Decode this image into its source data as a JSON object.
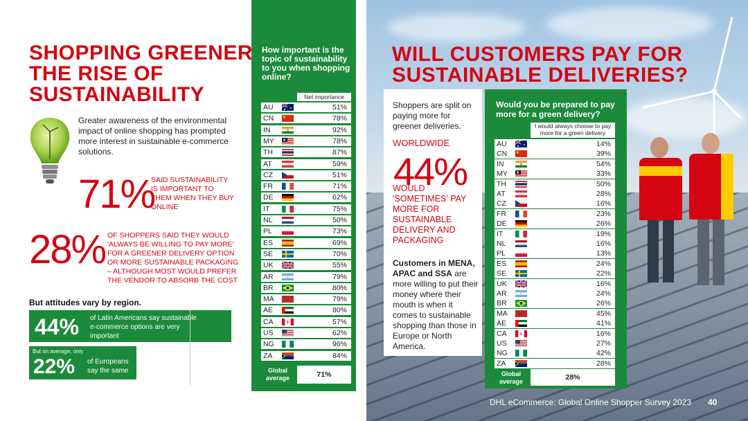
{
  "left": {
    "title_lines": [
      "SHOPPING GREENER:",
      "THE RISE OF",
      "SUSTAINABILITY"
    ],
    "intro": "Greater awareness of the environmental impact of online shopping has prompted more interest in sustainable e-commerce solutions.",
    "stat1_value": "71%",
    "stat1_text": "SAID SUSTAINABILITY IS IMPORTANT TO THEM WHEN THEY BUY ONLINE",
    "stat2_value": "28%",
    "stat2_text": "OF SHOPPERS SAID THEY WOULD 'ALWAYS BE WILLING TO PAY MORE' FOR A GREENER DELIVERY OPTION OR MORE SUSTAINABLE PACKAGING – ALTHOUGH MOST WOULD PREFER THE VENDOR TO ABSORB THE COST",
    "attitudes": "But attitudes vary by region.",
    "box1_value": "44%",
    "box1_text": "of Latin Americans say sustainable e-commerce options are very important",
    "box2_prefix": "But on average, only",
    "box2_value": "22%",
    "box2_text": "of Europeans say the same"
  },
  "table1": {
    "question": "How important is the topic of sustainability to you when shopping online?",
    "column": "Net importance",
    "rows": [
      {
        "cc": "AU",
        "v": "51%"
      },
      {
        "cc": "CN",
        "v": "78%"
      },
      {
        "cc": "IN",
        "v": "92%"
      },
      {
        "cc": "MY",
        "v": "78%"
      },
      {
        "cc": "TH",
        "v": "87%"
      },
      {
        "cc": "AT",
        "v": "59%"
      },
      {
        "cc": "CZ",
        "v": "51%"
      },
      {
        "cc": "FR",
        "v": "71%"
      },
      {
        "cc": "DE",
        "v": "62%"
      },
      {
        "cc": "IT",
        "v": "75%"
      },
      {
        "cc": "NL",
        "v": "50%"
      },
      {
        "cc": "PL",
        "v": "73%"
      },
      {
        "cc": "ES",
        "v": "69%"
      },
      {
        "cc": "SE",
        "v": "70%"
      },
      {
        "cc": "UK",
        "v": "55%"
      },
      {
        "cc": "AR",
        "v": "79%"
      },
      {
        "cc": "BR",
        "v": "80%"
      },
      {
        "cc": "MA",
        "v": "79%"
      },
      {
        "cc": "AE",
        "v": "80%"
      },
      {
        "cc": "CA",
        "v": "57%"
      },
      {
        "cc": "US",
        "v": "62%"
      },
      {
        "cc": "NG",
        "v": "96%"
      },
      {
        "cc": "ZA",
        "v": "84%"
      }
    ],
    "avg_label": "Global average",
    "avg_value": "71%"
  },
  "right": {
    "title_lines": [
      "WILL CUSTOMERS PAY FOR",
      "SUSTAINABLE DELIVERIES?"
    ],
    "card_p1": "Shoppers are split on paying more for greener deliveries.",
    "worldwide": "WORLDWIDE",
    "worldwide_value": "44%",
    "would_text": "WOULD 'SOMETIMES' PAY MORE FOR SUSTAINABLE DELIVERY AND PACKAGING",
    "card_p2_bold": "Customers in MENA, APAC and SSA",
    "card_p2": "are more willing to put their money where their mouth is when it comes to sustainable shopping than those in Europe or North America."
  },
  "table2": {
    "question": "Would you be prepared to pay more for a green delivery?",
    "column": "I would always choose to pay more for a green delivery",
    "rows": [
      {
        "cc": "AU",
        "v": "14%"
      },
      {
        "cc": "CN",
        "v": "39%"
      },
      {
        "cc": "IN",
        "v": "54%"
      },
      {
        "cc": "MY",
        "v": "33%"
      },
      {
        "cc": "TH",
        "v": "50%"
      },
      {
        "cc": "AT",
        "v": "28%"
      },
      {
        "cc": "CZ",
        "v": "16%"
      },
      {
        "cc": "FR",
        "v": "23%"
      },
      {
        "cc": "DE",
        "v": "26%"
      },
      {
        "cc": "IT",
        "v": "19%"
      },
      {
        "cc": "NL",
        "v": "16%"
      },
      {
        "cc": "PL",
        "v": "13%"
      },
      {
        "cc": "ES",
        "v": "24%"
      },
      {
        "cc": "SE",
        "v": "22%"
      },
      {
        "cc": "UK",
        "v": "16%"
      },
      {
        "cc": "AR",
        "v": "24%"
      },
      {
        "cc": "BR",
        "v": "26%"
      },
      {
        "cc": "MA",
        "v": "45%"
      },
      {
        "cc": "AE",
        "v": "41%"
      },
      {
        "cc": "CA",
        "v": "16%"
      },
      {
        "cc": "US",
        "v": "27%"
      },
      {
        "cc": "NG",
        "v": "42%"
      },
      {
        "cc": "ZA",
        "v": "28%"
      }
    ],
    "avg_label": "Global average",
    "avg_value": "28%"
  },
  "footer": {
    "text": "DHL eCommerce: Global Online Shopper Survey 2023",
    "page": "40",
    "watermark": "大数跨境"
  },
  "colors": {
    "red": "#d40511",
    "green": "#1b8a3a",
    "dhl_yellow": "#ffcc00"
  }
}
